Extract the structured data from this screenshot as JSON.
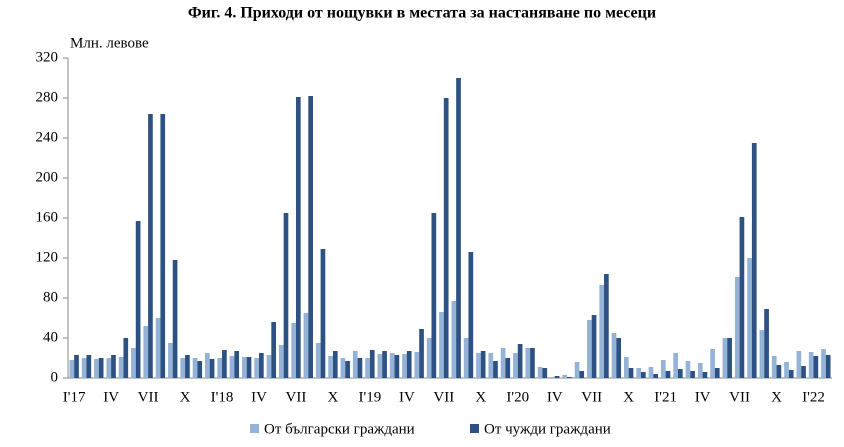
{
  "chart_data": {
    "type": "bar",
    "title": "Фиг. 4. Приходи от нощувки в местата за настаняване по месеци",
    "y_label": "Млн. левове",
    "categories": [
      "I'17",
      null,
      null,
      "IV",
      null,
      null,
      "VII",
      null,
      null,
      "X",
      null,
      null,
      "I'18",
      null,
      null,
      "IV",
      null,
      null,
      "VII",
      null,
      null,
      "X",
      null,
      null,
      "I'19",
      null,
      null,
      "IV",
      null,
      null,
      "VII",
      null,
      null,
      "X",
      null,
      null,
      "I'20",
      null,
      null,
      "IV",
      null,
      null,
      "VII",
      null,
      null,
      "X",
      null,
      null,
      "I'21",
      null,
      null,
      "IV",
      null,
      null,
      "VII",
      null,
      null,
      "X",
      null,
      null,
      "I'22",
      null
    ],
    "series": [
      {
        "name": "От български граждани",
        "color": "#95b3d7",
        "values": [
          18,
          20,
          19,
          20,
          21,
          30,
          52,
          60,
          35,
          20,
          20,
          25,
          20,
          22,
          21,
          20,
          23,
          33,
          55,
          65,
          35,
          22,
          20,
          27,
          20,
          24,
          25,
          24,
          26,
          40,
          66,
          77,
          40,
          25,
          25,
          30,
          25,
          30,
          11,
          1,
          3,
          16,
          58,
          93,
          45,
          21,
          10,
          11,
          18,
          25,
          17,
          15,
          29,
          40,
          101,
          120,
          48,
          22,
          16,
          27,
          26,
          29
        ]
      },
      {
        "name": "От чужди граждани",
        "color": "#2c5182",
        "values": [
          23,
          23,
          20,
          23,
          40,
          157,
          264,
          264,
          118,
          23,
          17,
          19,
          28,
          27,
          21,
          25,
          56,
          165,
          281,
          282,
          129,
          27,
          17,
          20,
          28,
          27,
          23,
          27,
          49,
          165,
          280,
          300,
          126,
          27,
          17,
          20,
          34,
          30,
          10,
          2,
          1,
          7,
          63,
          104,
          40,
          10,
          6,
          4,
          7,
          9,
          7,
          6,
          10,
          40,
          161,
          235,
          69,
          13,
          8,
          12,
          22,
          23
        ]
      }
    ],
    "ylim": [
      0,
      320
    ],
    "yticks": [
      0,
      40,
      80,
      120,
      160,
      200,
      240,
      280,
      320
    ],
    "legend": "bottom"
  }
}
